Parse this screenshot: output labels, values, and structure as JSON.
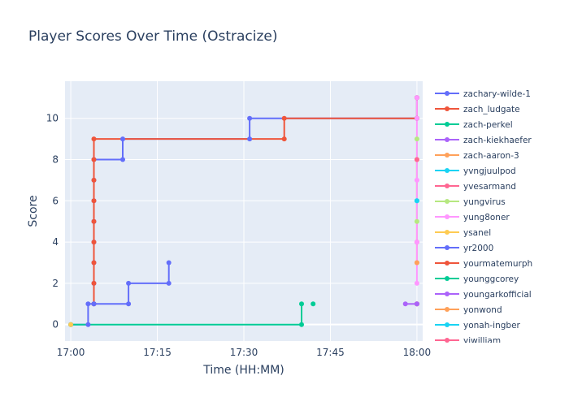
{
  "chart_data": {
    "type": "line",
    "title": "Player Scores Over Time (Ostracize)",
    "xlabel": "Time (HH:MM)",
    "ylabel": "Score",
    "x_ticks": [
      "17:00",
      "17:15",
      "17:30",
      "17:45",
      "18:00"
    ],
    "y_ticks": [
      "0",
      "2",
      "4",
      "6",
      "8",
      "10"
    ],
    "xlim": [
      "16:59",
      "18:01"
    ],
    "ylim": [
      -0.8,
      11.8
    ],
    "line_shape": "step",
    "grid": true,
    "legend_position": "right",
    "series": [
      {
        "name": "zachary-wilde-1",
        "color": "#636efa",
        "points": [
          [
            "17:00",
            0
          ],
          [
            "17:03",
            0
          ],
          [
            "17:03",
            1
          ],
          [
            "17:04",
            1
          ],
          [
            "17:04",
            2
          ],
          [
            "17:04",
            3
          ],
          [
            "17:04",
            4
          ],
          [
            "17:04",
            5
          ],
          [
            "17:04",
            6
          ],
          [
            "17:04",
            7
          ],
          [
            "17:04",
            8
          ],
          [
            "17:09",
            8
          ],
          [
            "17:09",
            9
          ],
          [
            "17:31",
            9
          ],
          [
            "17:31",
            10
          ],
          [
            "18:00",
            10
          ],
          [
            "18:00",
            11
          ]
        ]
      },
      {
        "name": "zach_ludgate",
        "color": "#ef553b",
        "points": [
          [
            "17:04",
            1
          ],
          [
            "17:04",
            2
          ],
          [
            "17:04",
            3
          ],
          [
            "17:04",
            4
          ],
          [
            "17:04",
            5
          ],
          [
            "17:04",
            6
          ],
          [
            "17:04",
            7
          ],
          [
            "17:04",
            8
          ],
          [
            "17:04",
            9
          ],
          [
            "17:37",
            9
          ],
          [
            "17:37",
            10
          ],
          [
            "18:00",
            10
          ],
          [
            "18:00",
            11
          ]
        ]
      },
      {
        "name": "zach-perkel",
        "color": "#00cc96",
        "points": [
          [
            "17:00",
            0
          ],
          [
            "17:40",
            0
          ],
          [
            "17:40",
            1
          ]
        ]
      },
      {
        "name": "zach-kiekhaefer",
        "color": "#ab63fa",
        "points": [
          [
            "17:58",
            1
          ],
          [
            "18:00",
            1
          ]
        ]
      },
      {
        "name": "zach-aaron-3",
        "color": "#ffa15a",
        "points": [
          [
            "18:00",
            3
          ],
          [
            "18:00",
            8
          ]
        ]
      },
      {
        "name": "yvngjuulpod",
        "color": "#19d3f3",
        "points": [
          [
            "18:00",
            6
          ]
        ]
      },
      {
        "name": "yvesarmand",
        "color": "#ff6692",
        "points": [
          [
            "18:00",
            4
          ]
        ]
      },
      {
        "name": "yungvirus",
        "color": "#b6e880",
        "points": [
          [
            "18:00",
            5
          ],
          [
            "18:00",
            9
          ]
        ]
      },
      {
        "name": "yung8oner",
        "color": "#ff97ff",
        "points": [
          [
            "18:00",
            2
          ],
          [
            "18:00",
            4
          ],
          [
            "18:00",
            7
          ],
          [
            "18:00",
            10
          ],
          [
            "18:00",
            11
          ]
        ]
      },
      {
        "name": "ysanel",
        "color": "#fecb52",
        "points": [
          [
            "17:00",
            0
          ]
        ]
      },
      {
        "name": "yr2000",
        "color": "#636efa",
        "points": [
          [
            "17:04",
            1
          ],
          [
            "17:10",
            1
          ],
          [
            "17:10",
            2
          ],
          [
            "17:17",
            2
          ],
          [
            "17:17",
            3
          ]
        ]
      },
      {
        "name": "yourmatemurph",
        "color": "#ef553b",
        "points": [
          [
            "18:00",
            1
          ]
        ]
      },
      {
        "name": "younggcorey",
        "color": "#00cc96",
        "points": [
          [
            "17:42",
            1
          ]
        ]
      },
      {
        "name": "youngarkofficial",
        "color": "#ab63fa",
        "points": [
          [
            "18:00",
            1
          ]
        ]
      },
      {
        "name": "yonwond",
        "color": "#ffa15a",
        "points": [
          [
            "18:00",
            3
          ]
        ]
      },
      {
        "name": "yonah-ingber",
        "color": "#19d3f3",
        "points": [
          [
            "18:00",
            6
          ]
        ]
      },
      {
        "name": "yiwilliam",
        "color": "#ff6692",
        "points": [
          [
            "18:00",
            8
          ]
        ]
      }
    ]
  }
}
